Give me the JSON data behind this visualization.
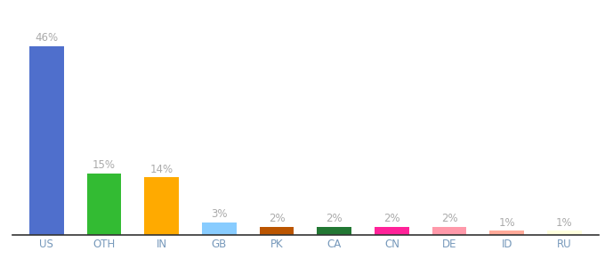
{
  "categories": [
    "US",
    "OTH",
    "IN",
    "GB",
    "PK",
    "CA",
    "CN",
    "DE",
    "ID",
    "RU"
  ],
  "values": [
    46,
    15,
    14,
    3,
    2,
    2,
    2,
    2,
    1,
    1
  ],
  "bar_colors": [
    "#4f6fcc",
    "#33bb33",
    "#ffaa00",
    "#88ccff",
    "#bb5500",
    "#227733",
    "#ff2299",
    "#ff99aa",
    "#ffaa99",
    "#ffffdd"
  ],
  "labels": [
    "46%",
    "15%",
    "14%",
    "3%",
    "2%",
    "2%",
    "2%",
    "2%",
    "1%",
    "1%"
  ],
  "ylim": [
    0,
    52
  ],
  "label_fontsize": 8.5,
  "tick_fontsize": 8.5,
  "bar_width": 0.6,
  "label_color": "#aaaaaa",
  "tick_color": "#7799bb"
}
